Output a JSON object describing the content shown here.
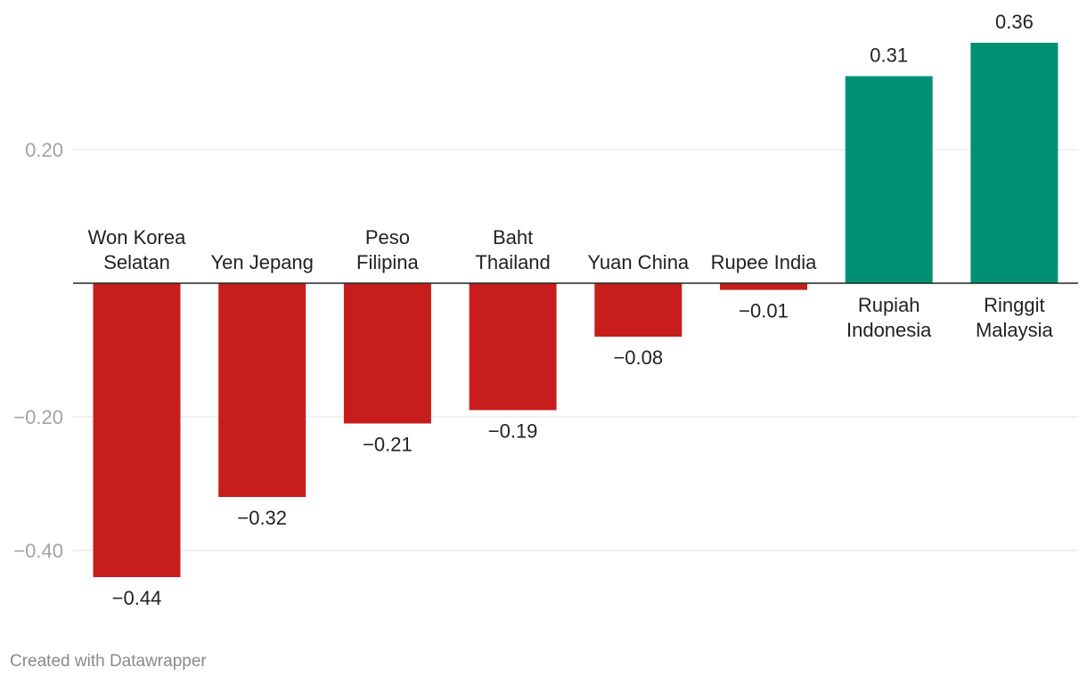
{
  "chart_data": {
    "type": "bar",
    "title": "",
    "xlabel": "",
    "ylabel": "",
    "categories": [
      [
        "Won Korea",
        "Selatan"
      ],
      [
        "Yen Jepang"
      ],
      [
        "Peso",
        "Filipina"
      ],
      [
        "Baht",
        "Thailand"
      ],
      [
        "Yuan China"
      ],
      [
        "Rupee India"
      ],
      [
        "Rupiah",
        "Indonesia"
      ],
      [
        "Ringgit",
        "Malaysia"
      ]
    ],
    "values": [
      -0.44,
      -0.32,
      -0.21,
      -0.19,
      -0.08,
      -0.01,
      0.31,
      0.36
    ],
    "value_labels": [
      "−0.44",
      "−0.32",
      "−0.21",
      "−0.19",
      "−0.08",
      "−0.01",
      "0.31",
      "0.36"
    ],
    "yticks": [
      0.2,
      -0.2,
      -0.4
    ],
    "ytick_labels": [
      "0.20",
      "−0.20",
      "−0.40"
    ],
    "ylim": [
      -0.44,
      0.36
    ],
    "grid": true,
    "colors": {
      "positive": "#009175",
      "negative": "#c71e1d"
    }
  },
  "footer": {
    "credit": "Created with Datawrapper"
  }
}
